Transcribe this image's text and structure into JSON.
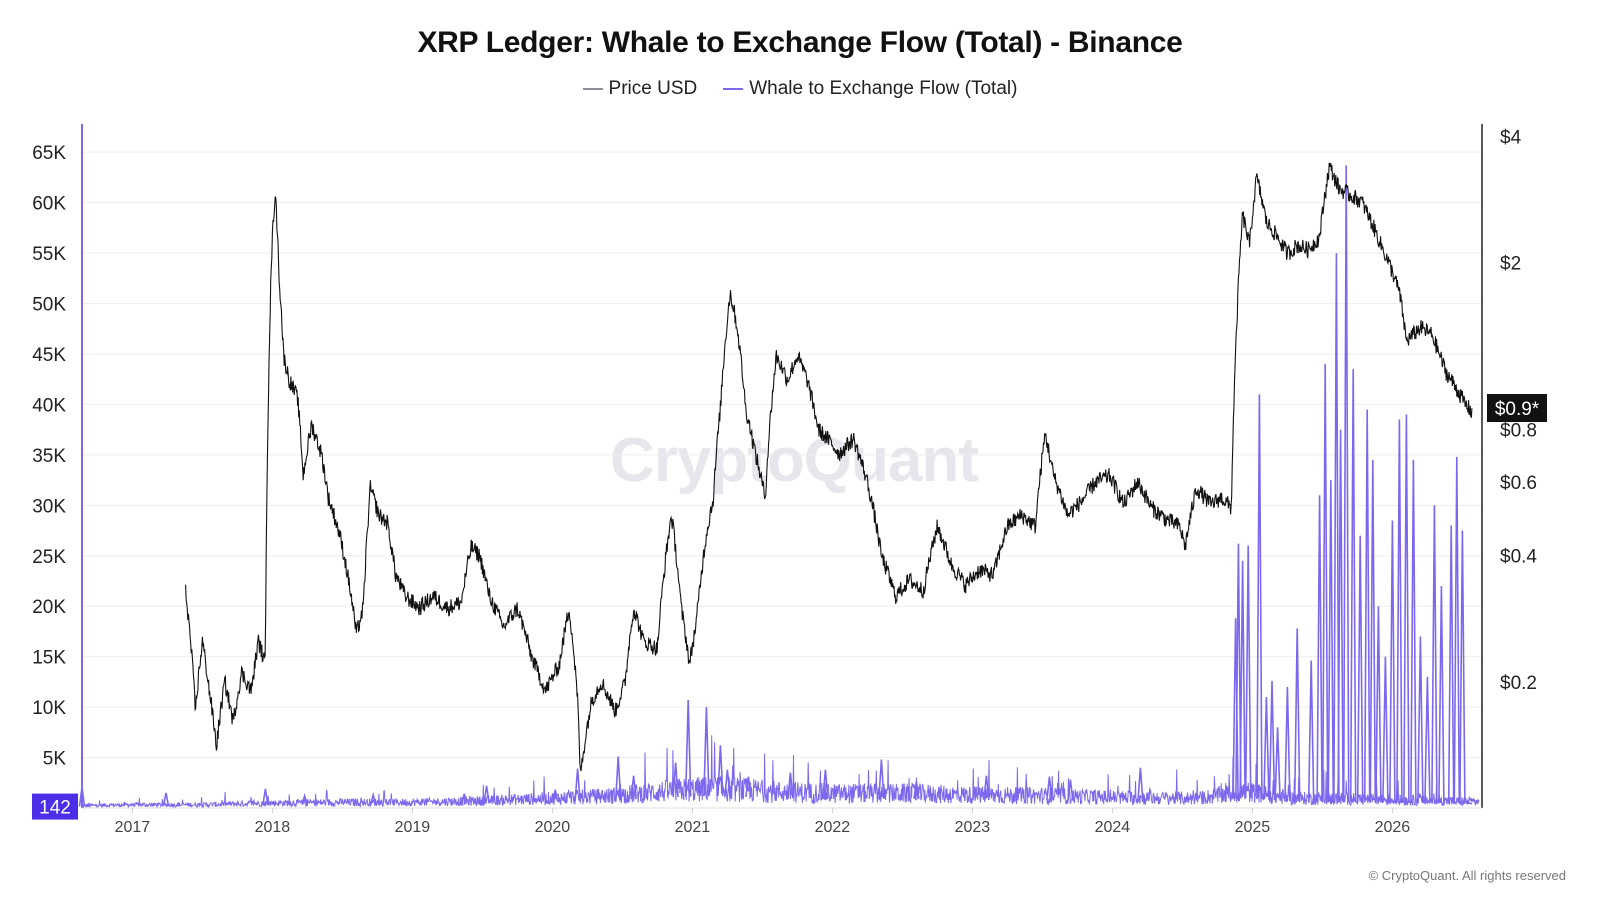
{
  "chart_data": {
    "type": "line",
    "title": "XRP Ledger: Whale to Exchange Flow (Total) - Binance",
    "watermark": "CryptoQuant",
    "copyright": "© CryptoQuant. All rights reserved",
    "legend": {
      "placement": "top-center",
      "items": [
        {
          "name": "Price USD",
          "color": "#8f8f99"
        },
        {
          "name": "Whale to Exchange Flow (Total)",
          "color": "#7b68ee"
        }
      ]
    },
    "grid": true,
    "x_axis": {
      "ticks": [
        "2017",
        "2018",
        "2019",
        "2020",
        "2021",
        "2022",
        "2023",
        "2024",
        "2025",
        "2026"
      ],
      "range": [
        2016.64,
        2026.64
      ]
    },
    "y_left": {
      "label": "",
      "range": [
        0,
        67000
      ],
      "ticks": [
        "65K",
        "60K",
        "55K",
        "50K",
        "45K",
        "40K",
        "35K",
        "30K",
        "25K",
        "20K",
        "15K",
        "10K",
        "5K"
      ],
      "tick_values": [
        65000,
        60000,
        55000,
        50000,
        45000,
        40000,
        35000,
        30000,
        25000,
        20000,
        15000,
        10000,
        5000
      ],
      "current_value": "142",
      "current_color": "#4b2ee8"
    },
    "y_right": {
      "label": "",
      "scale": "log",
      "range": [
        0.1,
        4.1
      ],
      "ticks": [
        "$4",
        "$2",
        "$0.8",
        "$0.6",
        "$0.4",
        "$0.2"
      ],
      "tick_values": [
        4,
        2,
        0.8,
        0.6,
        0.4,
        0.2
      ],
      "current_value": "$0.9*"
    },
    "series": [
      {
        "name": "Price USD",
        "color": "#111111",
        "axis": "right",
        "points": [
          [
            2017.38,
            0.33
          ],
          [
            2017.45,
            0.17
          ],
          [
            2017.5,
            0.25
          ],
          [
            2017.55,
            0.19
          ],
          [
            2017.6,
            0.14
          ],
          [
            2017.66,
            0.2
          ],
          [
            2017.72,
            0.16
          ],
          [
            2017.78,
            0.21
          ],
          [
            2017.85,
            0.19
          ],
          [
            2017.9,
            0.25
          ],
          [
            2017.95,
            0.22
          ],
          [
            2017.97,
            0.9
          ],
          [
            2018.0,
            2.3
          ],
          [
            2018.02,
            2.95
          ],
          [
            2018.05,
            1.8
          ],
          [
            2018.08,
            1.2
          ],
          [
            2018.12,
            1.05
          ],
          [
            2018.18,
            0.95
          ],
          [
            2018.22,
            0.62
          ],
          [
            2018.28,
            0.82
          ],
          [
            2018.35,
            0.7
          ],
          [
            2018.4,
            0.55
          ],
          [
            2018.48,
            0.45
          ],
          [
            2018.55,
            0.34
          ],
          [
            2018.6,
            0.26
          ],
          [
            2018.65,
            0.3
          ],
          [
            2018.7,
            0.58
          ],
          [
            2018.76,
            0.5
          ],
          [
            2018.82,
            0.48
          ],
          [
            2018.88,
            0.36
          ],
          [
            2018.95,
            0.32
          ],
          [
            2019.05,
            0.3
          ],
          [
            2019.15,
            0.32
          ],
          [
            2019.25,
            0.3
          ],
          [
            2019.35,
            0.31
          ],
          [
            2019.42,
            0.42
          ],
          [
            2019.48,
            0.4
          ],
          [
            2019.55,
            0.32
          ],
          [
            2019.65,
            0.27
          ],
          [
            2019.75,
            0.3
          ],
          [
            2019.85,
            0.23
          ],
          [
            2019.95,
            0.19
          ],
          [
            2020.05,
            0.22
          ],
          [
            2020.12,
            0.3
          ],
          [
            2020.18,
            0.18
          ],
          [
            2020.2,
            0.12
          ],
          [
            2020.28,
            0.18
          ],
          [
            2020.35,
            0.2
          ],
          [
            2020.45,
            0.17
          ],
          [
            2020.52,
            0.2
          ],
          [
            2020.58,
            0.3
          ],
          [
            2020.65,
            0.25
          ],
          [
            2020.75,
            0.24
          ],
          [
            2020.85,
            0.5
          ],
          [
            2020.92,
            0.3
          ],
          [
            2020.98,
            0.22
          ],
          [
            2021.03,
            0.28
          ],
          [
            2021.1,
            0.45
          ],
          [
            2021.15,
            0.55
          ],
          [
            2021.2,
            0.9
          ],
          [
            2021.27,
            1.7
          ],
          [
            2021.32,
            1.4
          ],
          [
            2021.38,
            0.9
          ],
          [
            2021.45,
            0.7
          ],
          [
            2021.52,
            0.55
          ],
          [
            2021.6,
            1.2
          ],
          [
            2021.68,
            1.05
          ],
          [
            2021.75,
            1.2
          ],
          [
            2021.82,
            1.05
          ],
          [
            2021.9,
            0.8
          ],
          [
            2021.98,
            0.75
          ],
          [
            2022.05,
            0.7
          ],
          [
            2022.15,
            0.76
          ],
          [
            2022.25,
            0.6
          ],
          [
            2022.35,
            0.4
          ],
          [
            2022.45,
            0.32
          ],
          [
            2022.55,
            0.35
          ],
          [
            2022.65,
            0.33
          ],
          [
            2022.75,
            0.47
          ],
          [
            2022.85,
            0.38
          ],
          [
            2022.95,
            0.34
          ],
          [
            2023.05,
            0.37
          ],
          [
            2023.15,
            0.36
          ],
          [
            2023.25,
            0.47
          ],
          [
            2023.35,
            0.5
          ],
          [
            2023.45,
            0.47
          ],
          [
            2023.52,
            0.78
          ],
          [
            2023.58,
            0.62
          ],
          [
            2023.68,
            0.5
          ],
          [
            2023.78,
            0.54
          ],
          [
            2023.88,
            0.6
          ],
          [
            2023.98,
            0.62
          ],
          [
            2024.08,
            0.53
          ],
          [
            2024.18,
            0.6
          ],
          [
            2024.28,
            0.52
          ],
          [
            2024.38,
            0.49
          ],
          [
            2024.48,
            0.47
          ],
          [
            2024.52,
            0.42
          ],
          [
            2024.6,
            0.58
          ],
          [
            2024.7,
            0.53
          ],
          [
            2024.78,
            0.55
          ],
          [
            2024.85,
            0.52
          ],
          [
            2024.88,
            1.2
          ],
          [
            2024.93,
            2.6
          ],
          [
            2024.98,
            2.2
          ],
          [
            2025.03,
            3.2
          ],
          [
            2025.1,
            2.5
          ],
          [
            2025.18,
            2.3
          ],
          [
            2025.25,
            2.1
          ],
          [
            2025.32,
            2.2
          ],
          [
            2025.4,
            2.15
          ],
          [
            2025.48,
            2.3
          ],
          [
            2025.55,
            3.4
          ],
          [
            2025.62,
            3.0
          ],
          [
            2025.7,
            2.9
          ],
          [
            2025.78,
            2.8
          ],
          [
            2025.85,
            2.5
          ],
          [
            2025.92,
            2.2
          ],
          [
            2026.0,
            1.9
          ],
          [
            2026.05,
            1.7
          ],
          [
            2026.1,
            1.3
          ],
          [
            2026.2,
            1.4
          ],
          [
            2026.28,
            1.35
          ],
          [
            2026.38,
            1.1
          ],
          [
            2026.46,
            1.0
          ],
          [
            2026.52,
            0.92
          ],
          [
            2026.57,
            0.88
          ]
        ]
      },
      {
        "name": "Whale to Exchange Flow (Total)",
        "color": "#7b68ee",
        "axis": "left",
        "baseline_points": [
          [
            2016.64,
            300
          ],
          [
            2017.0,
            400
          ],
          [
            2017.5,
            400
          ],
          [
            2017.95,
            600
          ],
          [
            2018.5,
            700
          ],
          [
            2019.0,
            700
          ],
          [
            2019.5,
            900
          ],
          [
            2020.0,
            1200
          ],
          [
            2020.4,
            1500
          ],
          [
            2020.9,
            2200
          ],
          [
            2021.2,
            2400
          ],
          [
            2021.6,
            2000
          ],
          [
            2022.0,
            1800
          ],
          [
            2022.6,
            1800
          ],
          [
            2023.0,
            1600
          ],
          [
            2023.6,
            1500
          ],
          [
            2024.0,
            1300
          ],
          [
            2024.6,
            1200
          ],
          [
            2024.95,
            2000
          ],
          [
            2025.3,
            1200
          ],
          [
            2025.8,
            1100
          ],
          [
            2026.3,
            900
          ],
          [
            2026.6,
            800
          ]
        ],
        "spikes": [
          [
            2016.64,
            2100
          ],
          [
            2017.24,
            1500
          ],
          [
            2017.95,
            1900
          ],
          [
            2018.23,
            1200
          ],
          [
            2018.72,
            1300
          ],
          [
            2019.37,
            1400
          ],
          [
            2019.53,
            2200
          ],
          [
            2020.02,
            1800
          ],
          [
            2020.18,
            3900
          ],
          [
            2020.47,
            5100
          ],
          [
            2020.58,
            3200
          ],
          [
            2020.88,
            4500
          ],
          [
            2020.97,
            10700
          ],
          [
            2021.1,
            10000
          ],
          [
            2021.2,
            6200
          ],
          [
            2021.25,
            3800
          ],
          [
            2021.4,
            3100
          ],
          [
            2021.7,
            3500
          ],
          [
            2021.95,
            3800
          ],
          [
            2022.35,
            4800
          ],
          [
            2022.6,
            2600
          ],
          [
            2023.1,
            3200
          ],
          [
            2023.55,
            3100
          ],
          [
            2023.7,
            2800
          ],
          [
            2024.2,
            4000
          ],
          [
            2024.88,
            18800
          ],
          [
            2024.9,
            26200
          ],
          [
            2024.93,
            24500
          ],
          [
            2024.97,
            26000
          ],
          [
            2025.05,
            41000
          ],
          [
            2025.1,
            11000
          ],
          [
            2025.14,
            12600
          ],
          [
            2025.18,
            8000
          ],
          [
            2025.25,
            12000
          ],
          [
            2025.32,
            17800
          ],
          [
            2025.42,
            14600
          ],
          [
            2025.48,
            31000
          ],
          [
            2025.52,
            44000
          ],
          [
            2025.56,
            32500
          ],
          [
            2025.6,
            55000
          ],
          [
            2025.63,
            37500
          ],
          [
            2025.67,
            63700
          ],
          [
            2025.72,
            43500
          ],
          [
            2025.77,
            27000
          ],
          [
            2025.82,
            39500
          ],
          [
            2025.86,
            34500
          ],
          [
            2025.9,
            20000
          ],
          [
            2025.95,
            15000
          ],
          [
            2026.0,
            28500
          ],
          [
            2026.05,
            38500
          ],
          [
            2026.1,
            39000
          ],
          [
            2026.15,
            34500
          ],
          [
            2026.2,
            17000
          ],
          [
            2026.25,
            13000
          ],
          [
            2026.3,
            30000
          ],
          [
            2026.35,
            22000
          ],
          [
            2026.42,
            28000
          ],
          [
            2026.46,
            34800
          ],
          [
            2026.5,
            27500
          ],
          [
            2026.55,
            500
          ]
        ]
      }
    ]
  }
}
